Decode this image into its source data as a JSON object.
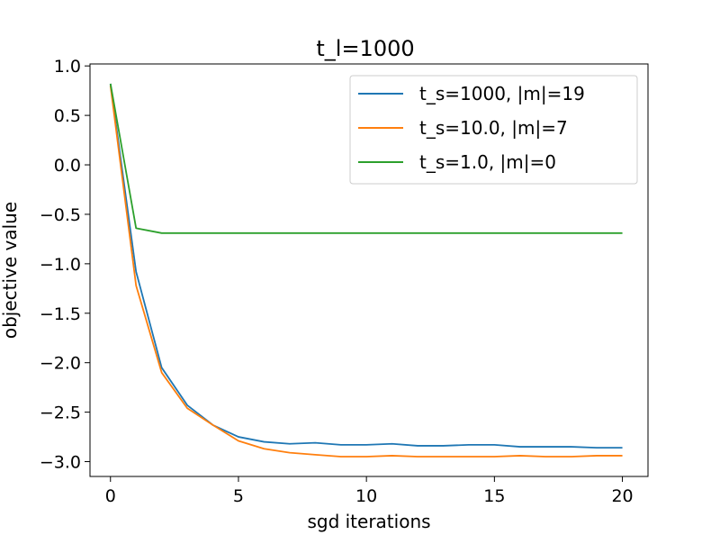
{
  "chart_data": {
    "type": "line",
    "title": "t_l=1000",
    "xlabel": "sgd iterations",
    "ylabel": "objective value",
    "xlim": [
      -0.8,
      21.0
    ],
    "ylim": [
      -3.15,
      1.02
    ],
    "xticks": [
      0,
      5,
      10,
      15,
      20
    ],
    "xtick_labels": [
      "0",
      "5",
      "10",
      "15",
      "20"
    ],
    "yticks": [
      1.0,
      0.5,
      0.0,
      -0.5,
      -1.0,
      -1.5,
      -2.0,
      -2.5,
      -3.0
    ],
    "ytick_labels": [
      "1.0",
      "0.5",
      "0.0",
      "−0.5",
      "−1.0",
      "−1.5",
      "−2.0",
      "−2.5",
      "−3.0"
    ],
    "grid": false,
    "legend_position": "top-right",
    "x": [
      0,
      1,
      2,
      3,
      4,
      5,
      6,
      7,
      8,
      9,
      10,
      11,
      12,
      13,
      14,
      15,
      16,
      17,
      18,
      19,
      20
    ],
    "series": [
      {
        "name": "t_s=1000, |m|=19",
        "color": "#1f77b4",
        "values": [
          0.82,
          -1.08,
          -2.05,
          -2.43,
          -2.63,
          -2.75,
          -2.8,
          -2.82,
          -2.81,
          -2.83,
          -2.83,
          -2.82,
          -2.84,
          -2.84,
          -2.83,
          -2.83,
          -2.85,
          -2.85,
          -2.85,
          -2.86,
          -2.86
        ]
      },
      {
        "name": "t_s=10.0, |m|=7",
        "color": "#ff7f0e",
        "values": [
          0.8,
          -1.22,
          -2.1,
          -2.46,
          -2.63,
          -2.79,
          -2.87,
          -2.91,
          -2.93,
          -2.95,
          -2.95,
          -2.94,
          -2.95,
          -2.95,
          -2.95,
          -2.95,
          -2.94,
          -2.95,
          -2.95,
          -2.94,
          -2.94
        ]
      },
      {
        "name": "t_s=1.0, |m|=0",
        "color": "#2ca02c",
        "values": [
          0.82,
          -0.64,
          -0.69,
          -0.69,
          -0.69,
          -0.69,
          -0.69,
          -0.69,
          -0.69,
          -0.69,
          -0.69,
          -0.69,
          -0.69,
          -0.69,
          -0.69,
          -0.69,
          -0.69,
          -0.69,
          -0.69,
          -0.69,
          -0.69
        ]
      }
    ]
  }
}
